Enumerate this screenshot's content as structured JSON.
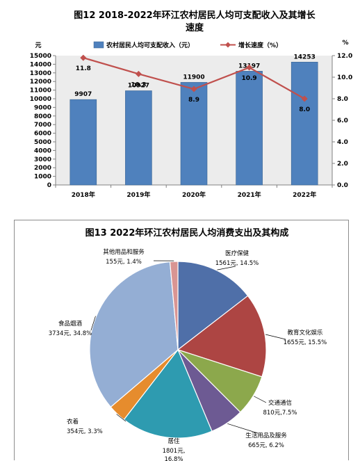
{
  "chart_data": [
    {
      "type": "bar+line",
      "title": "图12  2018-2022年环江农村居民人均可支配收入及其增长速度",
      "title_line1": "图12  2018-2022年环江农村居民人均可支配收入及其增长",
      "title_line2": "速度",
      "categories": [
        "2018年",
        "2019年",
        "2020年",
        "2021年",
        "2022年"
      ],
      "left_axis_unit": "元",
      "right_axis_unit": "%",
      "ylim_left": [
        0,
        15000
      ],
      "ylim_right": [
        0,
        12
      ],
      "left_ticks": [
        0,
        1000,
        2000,
        3000,
        4000,
        5000,
        6000,
        7000,
        8000,
        9000,
        10000,
        11000,
        12000,
        13000,
        14000,
        15000
      ],
      "right_ticks": [
        "0.0",
        "2.0",
        "4.0",
        "6.0",
        "8.0",
        "10.0",
        "12.0"
      ],
      "series": [
        {
          "name": "农村居民人均可支配收入（元）",
          "type": "bar",
          "axis": "left",
          "values": [
            9907,
            10927,
            11900,
            13197,
            14253
          ],
          "color": "#4f81bd"
        },
        {
          "name": "增长速度（%）",
          "type": "line",
          "axis": "right",
          "values": [
            11.8,
            10.3,
            8.9,
            10.9,
            8.0
          ],
          "labels": [
            "11.8",
            "10.3",
            "8.9",
            "10.9",
            "8.0"
          ],
          "color": "#c0504d"
        }
      ],
      "legend": "top",
      "grid": false,
      "plot_background": "#ececec"
    },
    {
      "type": "pie",
      "title": "图13    2022年环江农村居民人均消费支出及其构成",
      "slices": [
        {
          "name": "医疗保健",
          "value": 1561,
          "label": "1561元, 14.5%",
          "percent": 14.5,
          "color": "#4f6fa8"
        },
        {
          "name": "教育文化娱乐",
          "value": 1655,
          "label": "1655元, 15.5%",
          "percent": 15.5,
          "color": "#ad4543"
        },
        {
          "name": "交通通信",
          "value": 810,
          "label": "810元,7.5%",
          "percent": 7.5,
          "color": "#8ca84c"
        },
        {
          "name": "生活用品及服务",
          "value": 665,
          "label": "665元, 6.2%",
          "percent": 6.2,
          "color": "#6d5a93"
        },
        {
          "name": "居住",
          "value": 1801,
          "label": "1801元,",
          "label2": "16.8%",
          "percent": 16.8,
          "color": "#2e9bb0"
        },
        {
          "name": "衣着",
          "value": 354,
          "label": "354元, 3.3%",
          "percent": 3.3,
          "color": "#e68c2d"
        },
        {
          "name": "食品烟酒",
          "value": 3734,
          "label": "3734元, 34.8%",
          "percent": 34.8,
          "color": "#94aed4"
        },
        {
          "name": "其他用品和服务",
          "value": 155,
          "label": "155元, 1.4%",
          "percent": 1.4,
          "color": "#d99593"
        }
      ]
    }
  ]
}
